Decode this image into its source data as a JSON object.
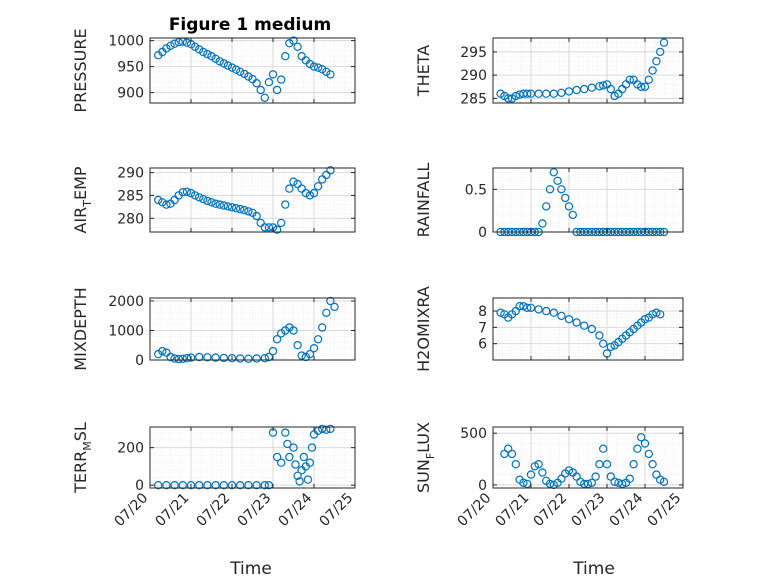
{
  "figure": {
    "title": "Figure 1 medium",
    "xlabel": "Time"
  },
  "colors": {
    "marker": "#0072BD",
    "axes": "#262626",
    "grid": "#d9d9d9",
    "minor_grid": "#ececec"
  },
  "chart_data": [
    {
      "type": "scatter",
      "ylabel": {
        "main": "PRESSURE",
        "sub": "",
        "rest": ""
      },
      "ylim": [
        880,
        1005
      ],
      "yticks": [
        900,
        950,
        1000
      ],
      "xlim": [
        "07/20",
        "07/25"
      ],
      "xticks": [
        "07/20",
        "07/21",
        "07/22",
        "07/23",
        "07/24",
        "07/25"
      ],
      "grid": true,
      "marker": "o",
      "series": [
        {
          "x": [
            0.2,
            0.3,
            0.4,
            0.5,
            0.6,
            0.7,
            0.8,
            0.9,
            1.0,
            1.1,
            1.2,
            1.3,
            1.4,
            1.5,
            1.6,
            1.7,
            1.8,
            1.9,
            2.0,
            2.1,
            2.2,
            2.3,
            2.4,
            2.5,
            2.6,
            2.7,
            2.8,
            2.9,
            3.0,
            3.1,
            3.2,
            3.3,
            3.4,
            3.5,
            3.6,
            3.7,
            3.8,
            3.9,
            4.0,
            4.1,
            4.2,
            4.3,
            4.4
          ],
          "y": [
            972,
            978,
            985,
            990,
            994,
            997,
            998,
            996,
            993,
            988,
            983,
            978,
            974,
            970,
            965,
            960,
            956,
            952,
            948,
            944,
            940,
            936,
            931,
            926,
            918,
            905,
            890,
            920,
            935,
            905,
            925,
            970,
            995,
            1000,
            988,
            970,
            962,
            955,
            950,
            948,
            945,
            940,
            935
          ]
        }
      ]
    },
    {
      "type": "scatter",
      "ylabel": {
        "main": "THETA",
        "sub": "",
        "rest": ""
      },
      "ylim": [
        284,
        298
      ],
      "yticks": [
        285,
        290,
        295
      ],
      "xlim": [
        "07/20",
        "07/25"
      ],
      "xticks": [
        "07/20",
        "07/21",
        "07/22",
        "07/23",
        "07/24",
        "07/25"
      ],
      "grid": true,
      "marker": "o",
      "series": [
        {
          "x": [
            0.2,
            0.3,
            0.4,
            0.5,
            0.6,
            0.7,
            0.8,
            0.9,
            1.0,
            1.2,
            1.4,
            1.6,
            1.8,
            2.0,
            2.2,
            2.4,
            2.6,
            2.8,
            2.9,
            3.0,
            3.1,
            3.2,
            3.3,
            3.4,
            3.5,
            3.6,
            3.7,
            3.8,
            3.9,
            4.0,
            4.1,
            4.2,
            4.3,
            4.4,
            4.5
          ],
          "y": [
            286,
            285.5,
            285,
            285,
            285.5,
            285.8,
            286,
            286,
            286,
            286,
            286,
            286,
            286.2,
            286.5,
            286.8,
            287,
            287.3,
            287.6,
            287.8,
            288,
            287,
            285.5,
            286,
            287,
            288,
            289,
            289,
            288,
            287.5,
            287.5,
            289,
            291,
            293,
            295,
            297
          ]
        }
      ]
    },
    {
      "type": "scatter",
      "ylabel": {
        "main": "AIR",
        "sub": "T",
        "rest": "EMP"
      },
      "ylim": [
        277,
        291
      ],
      "yticks": [
        280,
        285,
        290
      ],
      "xlim": [
        "07/20",
        "07/25"
      ],
      "xticks": [
        "07/20",
        "07/21",
        "07/22",
        "07/23",
        "07/24",
        "07/25"
      ],
      "grid": true,
      "marker": "o",
      "series": [
        {
          "x": [
            0.2,
            0.3,
            0.4,
            0.5,
            0.6,
            0.7,
            0.8,
            0.9,
            1.0,
            1.1,
            1.2,
            1.3,
            1.4,
            1.5,
            1.6,
            1.7,
            1.8,
            1.9,
            2.0,
            2.1,
            2.2,
            2.3,
            2.4,
            2.5,
            2.6,
            2.7,
            2.8,
            2.9,
            3.0,
            3.1,
            3.2,
            3.3,
            3.4,
            3.5,
            3.6,
            3.7,
            3.8,
            3.9,
            4.0,
            4.1,
            4.2,
            4.3,
            4.4
          ],
          "y": [
            284,
            283.5,
            283,
            283.2,
            284,
            285,
            285.7,
            285.8,
            285.5,
            285,
            284.6,
            284.2,
            283.8,
            283.5,
            283.2,
            283,
            282.8,
            282.6,
            282.4,
            282.2,
            282,
            281.8,
            281.5,
            281.2,
            280.5,
            279,
            278,
            278,
            278,
            277.5,
            279,
            283,
            286.5,
            288,
            287.5,
            286.5,
            285.5,
            285,
            285.5,
            287,
            288.5,
            289.5,
            290.5
          ]
        }
      ]
    },
    {
      "type": "scatter",
      "ylabel": {
        "main": "RAINFALL",
        "sub": "",
        "rest": ""
      },
      "ylim": [
        0,
        0.75
      ],
      "yticks": [
        0,
        0.5
      ],
      "xlim": [
        "07/20",
        "07/25"
      ],
      "xticks": [
        "07/20",
        "07/21",
        "07/22",
        "07/23",
        "07/24",
        "07/25"
      ],
      "grid": true,
      "marker": "o",
      "series": [
        {
          "x": [
            0.2,
            0.3,
            0.4,
            0.5,
            0.6,
            0.7,
            0.8,
            0.9,
            1.0,
            1.1,
            1.2,
            1.3,
            1.4,
            1.5,
            1.6,
            1.7,
            1.8,
            1.9,
            2.0,
            2.1,
            2.2,
            2.3,
            2.4,
            2.5,
            2.6,
            2.7,
            2.8,
            2.9,
            3.0,
            3.1,
            3.2,
            3.3,
            3.4,
            3.5,
            3.6,
            3.7,
            3.8,
            3.9,
            4.0,
            4.1,
            4.2,
            4.3,
            4.4,
            4.5
          ],
          "y": [
            0,
            0,
            0,
            0,
            0,
            0,
            0,
            0,
            0,
            0,
            0,
            0.1,
            0.3,
            0.5,
            0.7,
            0.6,
            0.5,
            0.4,
            0.3,
            0.2,
            0,
            0,
            0,
            0,
            0,
            0,
            0,
            0,
            0,
            0,
            0,
            0,
            0,
            0,
            0,
            0,
            0,
            0,
            0,
            0,
            0,
            0,
            0,
            0
          ]
        }
      ]
    },
    {
      "type": "scatter",
      "ylabel": {
        "main": "MIXDEPTH",
        "sub": "",
        "rest": ""
      },
      "ylim": [
        0,
        2100
      ],
      "yticks": [
        0,
        1000,
        2000
      ],
      "xlim": [
        "07/20",
        "07/25"
      ],
      "xticks": [
        "07/20",
        "07/21",
        "07/22",
        "07/23",
        "07/24",
        "07/25"
      ],
      "grid": true,
      "marker": "o",
      "series": [
        {
          "x": [
            0.2,
            0.3,
            0.4,
            0.5,
            0.6,
            0.7,
            0.8,
            0.9,
            1.0,
            1.2,
            1.4,
            1.6,
            1.8,
            2.0,
            2.2,
            2.4,
            2.6,
            2.8,
            2.9,
            3.0,
            3.1,
            3.2,
            3.3,
            3.4,
            3.5,
            3.6,
            3.7,
            3.8,
            3.9,
            4.0,
            4.1,
            4.2,
            4.3,
            4.4,
            4.5
          ],
          "y": [
            200,
            300,
            250,
            100,
            50,
            30,
            40,
            60,
            80,
            100,
            90,
            80,
            70,
            60,
            50,
            40,
            50,
            60,
            100,
            300,
            700,
            900,
            1000,
            1100,
            1000,
            500,
            150,
            100,
            200,
            400,
            700,
            1100,
            1600,
            2000,
            1800
          ]
        }
      ]
    },
    {
      "type": "scatter",
      "ylabel": {
        "main": "H2OMIXRA",
        "sub": "",
        "rest": ""
      },
      "ylim": [
        5,
        8.8
      ],
      "yticks": [
        6,
        7,
        8
      ],
      "xlim": [
        "07/20",
        "07/25"
      ],
      "xticks": [
        "07/20",
        "07/21",
        "07/22",
        "07/23",
        "07/24",
        "07/25"
      ],
      "grid": true,
      "marker": "o",
      "series": [
        {
          "x": [
            0.2,
            0.3,
            0.4,
            0.5,
            0.6,
            0.7,
            0.8,
            0.9,
            1.0,
            1.2,
            1.4,
            1.6,
            1.8,
            2.0,
            2.2,
            2.4,
            2.6,
            2.8,
            2.9,
            3.0,
            3.1,
            3.2,
            3.3,
            3.4,
            3.5,
            3.6,
            3.7,
            3.8,
            3.9,
            4.0,
            4.1,
            4.2,
            4.3,
            4.4
          ],
          "y": [
            7.9,
            7.8,
            7.6,
            7.8,
            8,
            8.3,
            8.3,
            8.2,
            8.2,
            8.1,
            8,
            7.9,
            7.7,
            7.5,
            7.3,
            7.1,
            6.9,
            6.5,
            6,
            5.4,
            5.8,
            5.9,
            6.1,
            6.3,
            6.5,
            6.7,
            6.9,
            7.1,
            7.3,
            7.5,
            7.6,
            7.8,
            7.9,
            7.8
          ]
        }
      ]
    },
    {
      "type": "scatter",
      "ylabel": {
        "main": "TERR",
        "sub": "M",
        "rest": "SL"
      },
      "ylim": [
        -15,
        310
      ],
      "yticks": [
        0,
        200
      ],
      "xlim": [
        "07/20",
        "07/25"
      ],
      "xticks": [
        "07/20",
        "07/21",
        "07/22",
        "07/23",
        "07/24",
        "07/25"
      ],
      "grid": true,
      "marker": "o",
      "series": [
        {
          "x": [
            0.2,
            0.4,
            0.6,
            0.8,
            1.0,
            1.2,
            1.4,
            1.6,
            1.8,
            2.0,
            2.2,
            2.4,
            2.6,
            2.8,
            2.9,
            3.0,
            3.1,
            3.2,
            3.3,
            3.35,
            3.4,
            3.5,
            3.55,
            3.6,
            3.65,
            3.7,
            3.75,
            3.8,
            3.85,
            3.9,
            3.95,
            4.0,
            4.1,
            4.2,
            4.3,
            4.4
          ],
          "y": [
            0,
            0,
            0,
            0,
            0,
            0,
            0,
            0,
            0,
            0,
            0,
            0,
            0,
            0,
            0,
            280,
            150,
            120,
            280,
            220,
            150,
            200,
            110,
            50,
            20,
            80,
            150,
            100,
            30,
            120,
            200,
            270,
            290,
            300,
            295,
            300
          ]
        }
      ]
    },
    {
      "type": "scatter",
      "ylabel": {
        "main": "SUN",
        "sub": "F",
        "rest": "LUX"
      },
      "ylim": [
        -30,
        560
      ],
      "yticks": [
        0,
        500
      ],
      "xlim": [
        "07/20",
        "07/25"
      ],
      "xticks": [
        "07/20",
        "07/21",
        "07/22",
        "07/23",
        "07/24",
        "07/25"
      ],
      "grid": true,
      "marker": "o",
      "series": [
        {
          "x": [
            0.3,
            0.4,
            0.5,
            0.6,
            0.7,
            0.8,
            0.9,
            1.0,
            1.1,
            1.2,
            1.3,
            1.4,
            1.5,
            1.6,
            1.7,
            1.8,
            1.9,
            2.0,
            2.1,
            2.2,
            2.3,
            2.4,
            2.5,
            2.6,
            2.7,
            2.8,
            2.9,
            3.0,
            3.1,
            3.2,
            3.3,
            3.4,
            3.5,
            3.6,
            3.7,
            3.8,
            3.9,
            4.0,
            4.1,
            4.2,
            4.3,
            4.4,
            4.5
          ],
          "y": [
            300,
            350,
            300,
            200,
            50,
            20,
            10,
            100,
            180,
            200,
            120,
            40,
            10,
            0,
            20,
            60,
            110,
            140,
            120,
            80,
            30,
            10,
            10,
            20,
            80,
            200,
            350,
            200,
            80,
            30,
            20,
            10,
            20,
            60,
            200,
            350,
            460,
            400,
            300,
            200,
            100,
            50,
            30
          ]
        }
      ]
    }
  ]
}
